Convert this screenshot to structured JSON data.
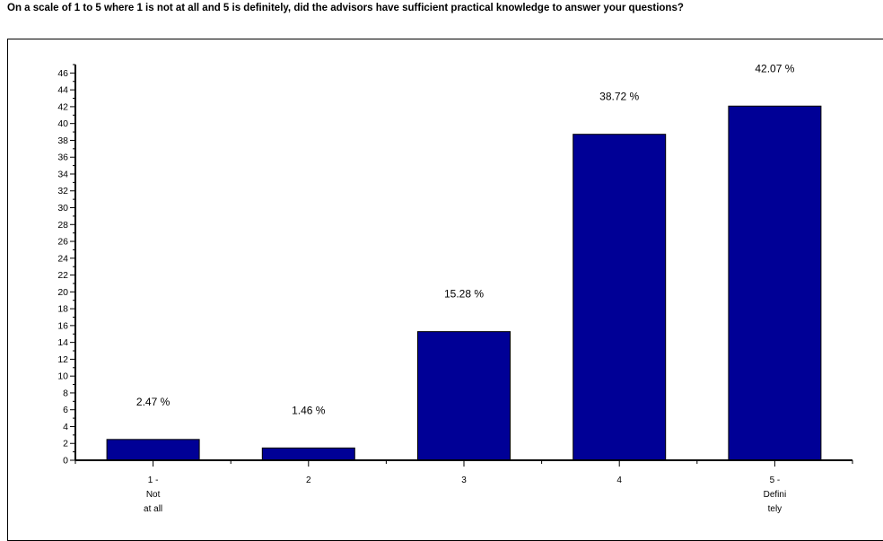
{
  "title": "On a scale of 1 to 5 where 1 is not at all and 5 is definitely, did the advisors have sufficient practical knowledge to answer your questions?",
  "chart_data": {
    "type": "bar",
    "categories": [
      [
        "1 -",
        "Not",
        "at all"
      ],
      [
        "2"
      ],
      [
        "3"
      ],
      [
        "4"
      ],
      [
        "5 -",
        "Defini",
        "tely"
      ]
    ],
    "values": [
      2.47,
      1.46,
      15.28,
      38.72,
      42.07
    ],
    "value_labels": [
      "2.47 %",
      "1.46 %",
      "15.28 %",
      "38.72 %",
      "42.07 %"
    ],
    "ylim": [
      0,
      47
    ],
    "yticks": [
      0,
      2,
      4,
      6,
      8,
      10,
      12,
      14,
      16,
      18,
      20,
      22,
      24,
      26,
      28,
      30,
      32,
      34,
      36,
      38,
      40,
      42,
      44,
      46
    ],
    "bar_color": "#000096",
    "grid": false,
    "legend": "none"
  }
}
